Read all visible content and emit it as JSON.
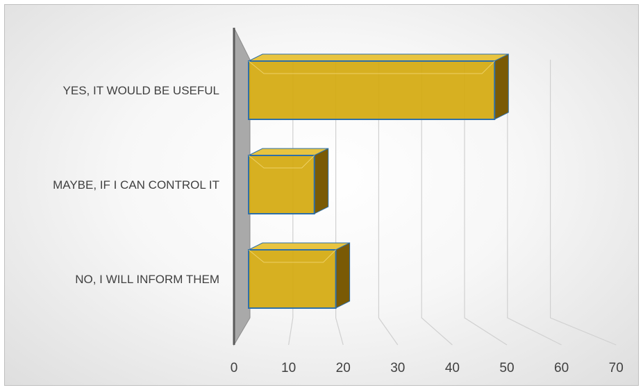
{
  "chart_data": {
    "type": "bar",
    "orientation": "horizontal",
    "style": "3d",
    "categories": [
      "YES, IT WOULD BE USEFUL",
      "MAYBE, IF I CAN CONTROL IT",
      "NO, I WILL INFORM THEM"
    ],
    "values": [
      57,
      15,
      20
    ],
    "title": "",
    "xlabel": "",
    "ylabel": "",
    "xlim": [
      0,
      70
    ],
    "xticks": [
      "0",
      "10",
      "20",
      "30",
      "40",
      "50",
      "60",
      "70"
    ],
    "grid": true,
    "legend": "none",
    "colors": {
      "bar_fill": "#d4a90e",
      "bar_top": "#e8c440",
      "bar_side": "#7a5a05",
      "bar_outline": "#2e6fa8",
      "wall": "#a9a9a9",
      "grid": "#d0d0d0"
    }
  }
}
